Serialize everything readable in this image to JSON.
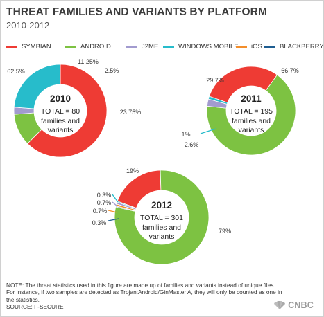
{
  "header": {
    "title": "THREAT FAMILIES AND VARIANTS BY PLATFORM",
    "subtitle": "2010-2012"
  },
  "legend": [
    {
      "label": "SYMBIAN",
      "color": "#ee3b34"
    },
    {
      "label": "ANDROID",
      "color": "#7dc242"
    },
    {
      "label": "J2ME",
      "color": "#a29bcf"
    },
    {
      "label": "WINDOWS MOBILE",
      "color": "#27bccb"
    },
    {
      "label": "iOS",
      "color": "#f38e2b"
    },
    {
      "label": "BLACKBERRY",
      "color": "#1e5d91"
    }
  ],
  "chart_data": [
    {
      "type": "pie",
      "center_year": "2010",
      "center_total": "TOTAL = 80",
      "center_caption_1": "families and",
      "center_caption_2": "variants",
      "slices": [
        {
          "name": "SYMBIAN",
          "value": 62.5,
          "label": "62.5%"
        },
        {
          "name": "ANDROID",
          "value": 11.25,
          "label": "11.25%"
        },
        {
          "name": "J2ME",
          "value": 2.5,
          "label": "2.5%"
        },
        {
          "name": "WINDOWS MOBILE",
          "value": 23.75,
          "label": "23.75%"
        }
      ]
    },
    {
      "type": "pie",
      "center_year": "2011",
      "center_total": "TOTAL = 195",
      "center_caption_1": "families and",
      "center_caption_2": "variants",
      "slices": [
        {
          "name": "SYMBIAN",
          "value": 29.7,
          "label": "29.7%"
        },
        {
          "name": "ANDROID",
          "value": 66.7,
          "label": "66.7%"
        },
        {
          "name": "J2ME",
          "value": 2.6,
          "label": "2.6%"
        },
        {
          "name": "WINDOWS MOBILE",
          "value": 1.0,
          "label": "1%"
        }
      ]
    },
    {
      "type": "pie",
      "center_year": "2012",
      "center_total": "TOTAL = 301",
      "center_caption_1": "families and",
      "center_caption_2": "variants",
      "slices": [
        {
          "name": "SYMBIAN",
          "value": 19,
          "label": "19%"
        },
        {
          "name": "ANDROID",
          "value": 79,
          "label": "79%"
        },
        {
          "name": "BLACKBERRY",
          "value": 0.3,
          "label": "0.3%"
        },
        {
          "name": "iOS",
          "value": 0.7,
          "label": "0.7%"
        },
        {
          "name": "J2ME",
          "value": 0.7,
          "label": "0.7%"
        },
        {
          "name": "WINDOWS MOBILE",
          "value": 0.3,
          "label": "0.3%"
        }
      ]
    }
  ],
  "footer": {
    "note_line_1": "NOTE: The threat statistics used in this figure are made up of families and variants instead of unique files.",
    "note_line_2": "For instance, if two samples are detected as Trojan:Android/GinMaster A, they will only be counted as one in",
    "note_line_3": "the statistics.",
    "source": "SOURCE: F-SECURE",
    "logo_text": "CNBC"
  }
}
